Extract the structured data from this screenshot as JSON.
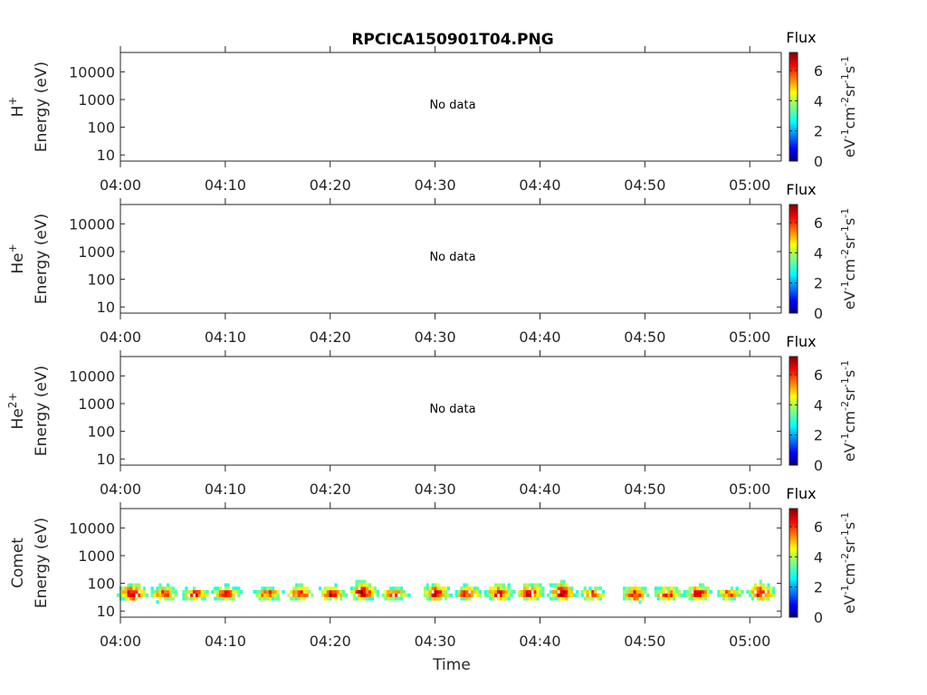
{
  "figure": {
    "title": "RPCICA150901T04.PNG",
    "x_axis_label": "Time",
    "colorbar_title": "Flux",
    "colorbar_unit_parts": [
      "eV",
      "-1",
      "cm",
      "-2",
      "sr",
      "-1",
      "s",
      "-1"
    ],
    "no_data_text": "No data"
  },
  "chart_data": [
    {
      "type": "heatmap",
      "panel": "H+",
      "ylabel": {
        "species": "H",
        "charge": "+",
        "quantity": "Energy (eV)"
      },
      "x_tick_labels": [
        "04:00",
        "04:10",
        "04:20",
        "04:30",
        "04:40",
        "04:50",
        "05:00"
      ],
      "y_tick_labels": [
        "10",
        "100",
        "1000",
        "10000"
      ],
      "xlim": [
        "04:00",
        "05:03"
      ],
      "ylim": [
        6,
        50000
      ],
      "yscale": "log",
      "has_data": false,
      "colorbar": {
        "label": "Flux",
        "ticks": [
          "0",
          "2",
          "4",
          "6"
        ],
        "range": [
          0,
          7.2
        ],
        "colormap": "jet"
      }
    },
    {
      "type": "heatmap",
      "panel": "He+",
      "ylabel": {
        "species": "He",
        "charge": "+",
        "quantity": "Energy (eV)"
      },
      "x_tick_labels": [
        "04:00",
        "04:10",
        "04:20",
        "04:30",
        "04:40",
        "04:50",
        "05:00"
      ],
      "y_tick_labels": [
        "10",
        "100",
        "1000",
        "10000"
      ],
      "xlim": [
        "04:00",
        "05:03"
      ],
      "ylim": [
        6,
        50000
      ],
      "yscale": "log",
      "has_data": false,
      "colorbar": {
        "label": "Flux",
        "ticks": [
          "0",
          "2",
          "4",
          "6"
        ],
        "range": [
          0,
          7.2
        ],
        "colormap": "jet"
      }
    },
    {
      "type": "heatmap",
      "panel": "He2+",
      "ylabel": {
        "species": "He",
        "charge": "2+",
        "quantity": "Energy (eV)"
      },
      "x_tick_labels": [
        "04:00",
        "04:10",
        "04:20",
        "04:30",
        "04:40",
        "04:50",
        "05:00"
      ],
      "y_tick_labels": [
        "10",
        "100",
        "1000",
        "10000"
      ],
      "xlim": [
        "04:00",
        "05:03"
      ],
      "ylim": [
        6,
        50000
      ],
      "yscale": "log",
      "has_data": false,
      "colorbar": {
        "label": "Flux",
        "ticks": [
          "0",
          "2",
          "4",
          "6"
        ],
        "range": [
          0,
          7.2
        ],
        "colormap": "jet"
      }
    },
    {
      "type": "heatmap",
      "panel": "Comet",
      "ylabel": {
        "species": "Comet",
        "charge": "",
        "quantity": "Energy (eV)"
      },
      "x_tick_labels": [
        "04:00",
        "04:10",
        "04:20",
        "04:30",
        "04:40",
        "04:50",
        "05:00"
      ],
      "y_tick_labels": [
        "10",
        "100",
        "1000",
        "10000"
      ],
      "xlim": [
        "04:00",
        "05:03"
      ],
      "ylim": [
        6,
        50000
      ],
      "yscale": "log",
      "has_data": true,
      "colorbar": {
        "label": "Flux",
        "ticks": [
          "0",
          "2",
          "4",
          "6"
        ],
        "range": [
          0,
          7.2
        ],
        "colormap": "jet"
      },
      "bursts": [
        {
          "time": "04:01",
          "energy_min": 12,
          "energy_max": 150,
          "peak_flux": 6.5
        },
        {
          "time": "04:04",
          "energy_min": 12,
          "energy_max": 130,
          "peak_flux": 5.8
        },
        {
          "time": "04:07",
          "energy_min": 15,
          "energy_max": 80,
          "peak_flux": 6.3
        },
        {
          "time": "04:10",
          "energy_min": 15,
          "energy_max": 130,
          "peak_flux": 6.2
        },
        {
          "time": "04:14",
          "energy_min": 15,
          "energy_max": 100,
          "peak_flux": 5.9
        },
        {
          "time": "04:17",
          "energy_min": 15,
          "energy_max": 130,
          "peak_flux": 6.0
        },
        {
          "time": "04:20",
          "energy_min": 15,
          "energy_max": 110,
          "peak_flux": 6.4
        },
        {
          "time": "04:23",
          "energy_min": 15,
          "energy_max": 220,
          "peak_flux": 6.6
        },
        {
          "time": "04:26",
          "energy_min": 15,
          "energy_max": 90,
          "peak_flux": 5.7
        },
        {
          "time": "04:30",
          "energy_min": 15,
          "energy_max": 160,
          "peak_flux": 6.5
        },
        {
          "time": "04:33",
          "energy_min": 15,
          "energy_max": 120,
          "peak_flux": 6.1
        },
        {
          "time": "04:36",
          "energy_min": 15,
          "energy_max": 140,
          "peak_flux": 6.3
        },
        {
          "time": "04:39",
          "energy_min": 15,
          "energy_max": 160,
          "peak_flux": 6.4
        },
        {
          "time": "04:42",
          "energy_min": 15,
          "energy_max": 200,
          "peak_flux": 6.6
        },
        {
          "time": "04:45",
          "energy_min": 12,
          "energy_max": 100,
          "peak_flux": 5.8
        },
        {
          "time": "04:49",
          "energy_min": 12,
          "energy_max": 130,
          "peak_flux": 6.2
        },
        {
          "time": "04:52",
          "energy_min": 15,
          "energy_max": 110,
          "peak_flux": 6.1
        },
        {
          "time": "04:55",
          "energy_min": 15,
          "energy_max": 140,
          "peak_flux": 6.4
        },
        {
          "time": "04:58",
          "energy_min": 15,
          "energy_max": 90,
          "peak_flux": 5.9
        },
        {
          "time": "05:01",
          "energy_min": 15,
          "energy_max": 180,
          "peak_flux": 6.5
        }
      ]
    }
  ]
}
